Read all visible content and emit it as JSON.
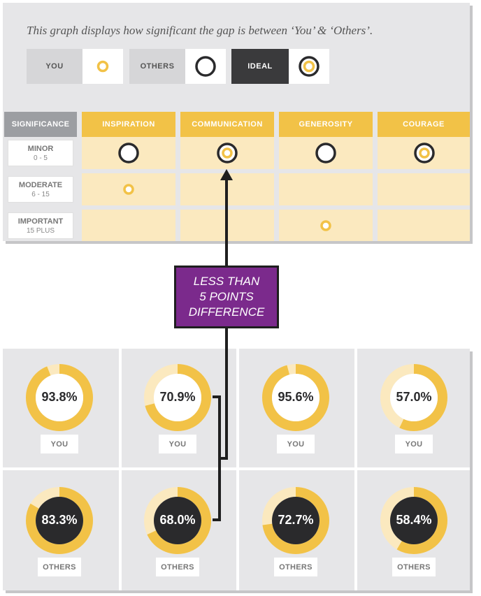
{
  "caption": "This graph displays how significant the gap is between ‘You’ & ‘Others’.",
  "legend": [
    {
      "label": "YOU",
      "icon": "you-marker-icon"
    },
    {
      "label": "OTHERS",
      "icon": "others-marker-icon"
    },
    {
      "label": "IDEAL",
      "icon": "ideal-marker-icon"
    }
  ],
  "grid": {
    "significance_header": "SIGNIFICANCE",
    "categories": [
      "INSPIRATION",
      "COMMUNICATION",
      "GENEROSITY",
      "COURAGE"
    ],
    "rows": [
      {
        "name": "MINOR",
        "range": "0 - 5"
      },
      {
        "name": "MODERATE",
        "range": "6 - 15"
      },
      {
        "name": "IMPORTANT",
        "range": "15 PLUS"
      }
    ],
    "markers": [
      {
        "category": "INSPIRATION",
        "row": "MINOR",
        "type": "others"
      },
      {
        "category": "INSPIRATION",
        "row": "MODERATE",
        "type": "you"
      },
      {
        "category": "COMMUNICATION",
        "row": "MINOR",
        "type": "ideal"
      },
      {
        "category": "GENEROSITY",
        "row": "MINOR",
        "type": "others"
      },
      {
        "category": "GENEROSITY",
        "row": "IMPORTANT",
        "type": "you"
      },
      {
        "category": "COURAGE",
        "row": "MINOR",
        "type": "ideal"
      }
    ]
  },
  "callout": {
    "line1": "LESS THAN",
    "line2": "5 POINTS",
    "line3": "DIFFERENCE"
  },
  "scores": {
    "you": [
      {
        "label": "93.8%",
        "value": 93.8,
        "tag": "YOU"
      },
      {
        "label": "70.9%",
        "value": 70.9,
        "tag": "YOU"
      },
      {
        "label": "95.6%",
        "value": 95.6,
        "tag": "YOU"
      },
      {
        "label": "57.0%",
        "value": 57.0,
        "tag": "YOU"
      }
    ],
    "others": [
      {
        "label": "83.3%",
        "value": 83.3,
        "tag": "OTHERS"
      },
      {
        "label": "68.0%",
        "value": 68.0,
        "tag": "OTHERS"
      },
      {
        "label": "72.7%",
        "value": 72.7,
        "tag": "OTHERS"
      },
      {
        "label": "58.4%",
        "value": 58.4,
        "tag": "OTHERS"
      }
    ]
  },
  "colors": {
    "gold": "#f2c247",
    "pale_gold": "#fbe9bf",
    "dark": "#2a2a2c",
    "purple": "#7b2a8c",
    "grey_panel": "#e6e6e8"
  }
}
